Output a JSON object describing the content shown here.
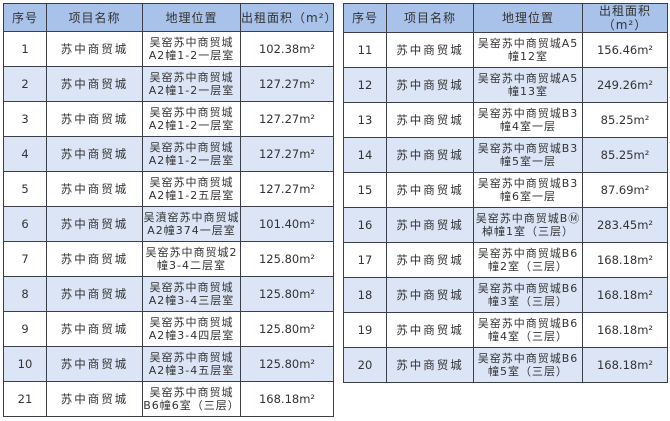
{
  "headers": [
    "序号",
    "项目名称",
    "地理位置",
    "出租面积（m²）"
  ],
  "left_rows": [
    {
      "no": "1",
      "name": "苏中商贸城",
      "loc": "吴窑苏中商贸城A2幢1-2一层室",
      "area": "102.38m²"
    },
    {
      "no": "2",
      "name": "苏中商贸城",
      "loc": "吴窑苏中商贸城A2幢1-2一层室",
      "area": "127.27m²"
    },
    {
      "no": "3",
      "name": "苏中商贸城",
      "loc": "吴窑苏中商贸城A2幢1-2一层室",
      "area": "127.27m²"
    },
    {
      "no": "4",
      "name": "苏中商贸城",
      "loc": "吴窑苏中商贸城A2幢1-2一层室",
      "area": "127.27m²"
    },
    {
      "no": "5",
      "name": "苏中商贸城",
      "loc": "吴窑苏中商贸城A2幢1-2五层室",
      "area": "127.27m²"
    },
    {
      "no": "6",
      "name": "苏中商贸城",
      "loc": "吴濆窑苏中商贸城A2幢374一层室",
      "area": "101.40m²"
    },
    {
      "no": "7",
      "name": "苏中商贸城",
      "loc": "吴窑苏中商贸城2幢3-4二层室",
      "area": "125.80m²"
    },
    {
      "no": "8",
      "name": "苏中商贸城",
      "loc": "吴窑苏中商贸城A2幢3-4三层室",
      "area": "125.80m²"
    },
    {
      "no": "9",
      "name": "苏中商贸城",
      "loc": "吴窑苏中商贸城A2幢3-4四层室",
      "area": "125.80m²"
    },
    {
      "no": "10",
      "name": "苏中商贸城",
      "loc": "吴窑苏中商贸城A2幢3-4五层室",
      "area": "125.80m²"
    },
    {
      "no": "21",
      "name": "苏中商贸城",
      "loc": "吴窑苏中商贸城B6幢6室（三层）",
      "area": "168.18m²"
    }
  ],
  "right_rows": [
    {
      "no": "11",
      "name": "苏中商贸城",
      "loc": "吴窑苏中商贸城A5幢12室",
      "area": "156.46m²"
    },
    {
      "no": "12",
      "name": "苏中商贸城",
      "loc": "吴窑苏中商贸城A5幢13室",
      "area": "249.26m²"
    },
    {
      "no": "13",
      "name": "苏中商贸城",
      "loc": "吴窑苏中商贸城B3幢4室一层",
      "area": "85.25m²"
    },
    {
      "no": "14",
      "name": "苏中商贸城",
      "loc": "吴窑苏中商贸城B3幢5室一层",
      "area": "85.25m²"
    },
    {
      "no": "15",
      "name": "苏中商贸城",
      "loc": "吴窑苏中商贸城B3幢6室一层",
      "area": "87.69m²"
    },
    {
      "no": "16",
      "name": "苏中商贸城",
      "loc": "吴窑苏中商贸城BⓂ棹幢1室（三层）",
      "area": "283.45m²"
    },
    {
      "no": "17",
      "name": "苏中商贸城",
      "loc": "吴窑苏中商贸城B6幢2室（三层）",
      "area": "168.18m²"
    },
    {
      "no": "18",
      "name": "苏中商贸城",
      "loc": "吴窑苏中商贸城B6幢3室（三层）",
      "area": "168.18m²"
    },
    {
      "no": "19",
      "name": "苏中商贸城",
      "loc": "吴窑苏中商贸城B6幢4室（三层）",
      "area": "168.18m²"
    },
    {
      "no": "20",
      "name": "苏中商贸城",
      "loc": "吴窑苏中商贸城B6幢5室（三层）",
      "area": "168.18m²"
    }
  ],
  "colors": {
    "header_bg": "#a8c2ea",
    "alt_row_bg": "#dbe5f5",
    "border": "#3a3f4a"
  }
}
